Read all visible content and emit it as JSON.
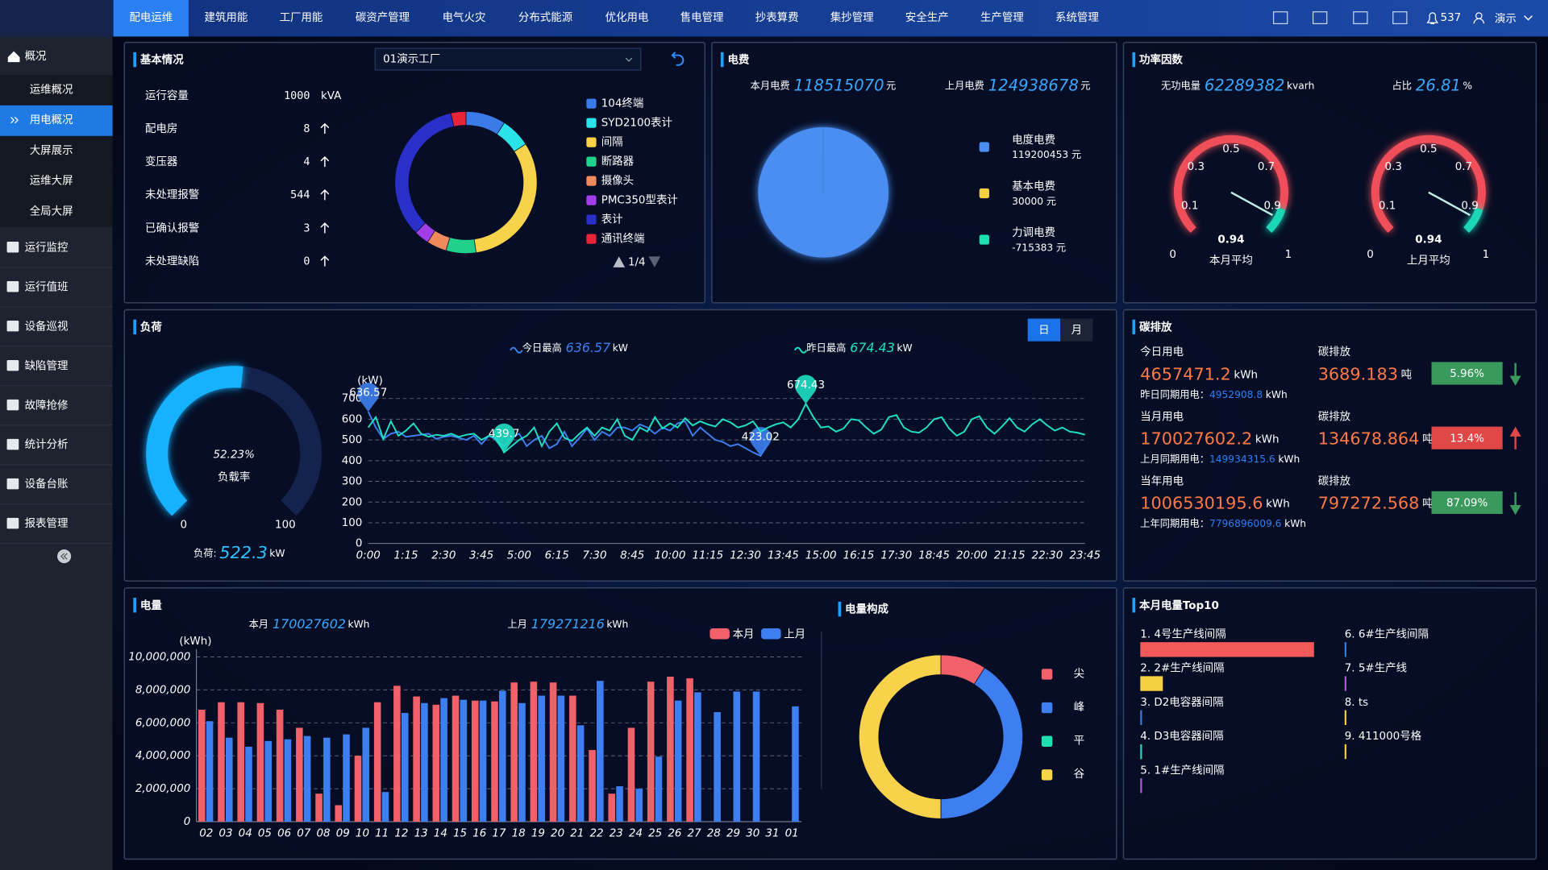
{
  "nav": {
    "items": [
      "配电运维",
      "建筑用能",
      "工厂用能",
      "碳资产管理",
      "电气火灾",
      "分布式能源",
      "优化用电",
      "售电管理",
      "抄表算费",
      "集抄管理",
      "安全生产",
      "生产管理",
      "系统管理"
    ],
    "active": 0,
    "alarm_count": 537,
    "user": "演示"
  },
  "sidebar": {
    "home": "概况",
    "submenu": [
      "运维概况",
      "用电概况",
      "大屏展示",
      "运维大屏",
      "全局大屏"
    ],
    "active_submenu": 1,
    "menu": [
      "运行监控",
      "运行值班",
      "设备巡视",
      "缺陷管理",
      "故障抢修",
      "统计分析",
      "设备台账",
      "报表管理"
    ]
  },
  "basic": {
    "title": "基本情况",
    "site": "01演示工厂",
    "stats": [
      {
        "label": "运行容量",
        "value": 1000,
        "unit": "kVA",
        "color": "#1aa7ff"
      },
      {
        "label": "配电房",
        "value": 8,
        "color": "#1aa7ff"
      },
      {
        "label": "变压器",
        "value": 4,
        "color": "#1aa7ff"
      },
      {
        "label": "未处理报警",
        "value": 544,
        "color": "#ff3b3b"
      },
      {
        "label": "已确认报警",
        "value": 3,
        "color": "#ff3b3b"
      },
      {
        "label": "未处理缺陷",
        "value": 0,
        "color": "#ff3b3b"
      }
    ],
    "devices": {
      "type": "donut",
      "categories": [
        "104终端",
        "SYD2100表计",
        "间隔",
        "断路器",
        "摄像头",
        "PMC350型表计",
        "表计",
        "通讯终端"
      ],
      "values": [
        8,
        6,
        28,
        6,
        4,
        3,
        30,
        3
      ],
      "colors": [
        "#3b7be8",
        "#29e3e8",
        "#f7d24a",
        "#1fd18a",
        "#f08a5d",
        "#a23ee8",
        "#2a2fc9",
        "#e8243a"
      ]
    },
    "page": "1/4"
  },
  "fee": {
    "title": "电费",
    "current_label": "本月电费",
    "current": 118515070,
    "previous_label": "上月电费",
    "previous": 124938678,
    "unit": "元",
    "breakdown": {
      "type": "pie",
      "categories": [
        "电度电费",
        "基本电费",
        "力调电费"
      ],
      "values": [
        119200453,
        30000,
        -715383
      ],
      "colors": [
        "#4a8ef0",
        "#f5d142",
        "#1de0b0"
      ]
    }
  },
  "power_factor": {
    "title": "功率因数",
    "reactive_label": "无功电量",
    "reactive": 62289382,
    "reactive_unit": "kvarh",
    "share_label": "占比",
    "share": 26.81,
    "share_unit": "%",
    "gauges": {
      "type": "gauge",
      "min": 0,
      "max": 1,
      "ticks": [
        0.1,
        0.3,
        0.5,
        0.7,
        0.9
      ],
      "bands": [
        {
          "to": 0.9,
          "color": "#f0505a"
        },
        {
          "to": 1,
          "color": "#1ed6b6"
        }
      ],
      "items": [
        {
          "label": "本月平均",
          "value": 0.94
        },
        {
          "label": "上月平均",
          "value": 0.94
        }
      ]
    }
  },
  "load": {
    "title": "负荷",
    "periods": [
      "日",
      "月"
    ],
    "active_period": 0,
    "gauge": {
      "type": "gauge",
      "value": 52.23,
      "unit": "%",
      "label": "负载率",
      "min": 0,
      "max": 100
    },
    "load_label": "负荷:",
    "load": 522.3,
    "load_unit": "kW",
    "trend": {
      "type": "line",
      "unit": "kW",
      "y_label": "(kW)",
      "categories": [
        "0:00",
        null,
        null,
        null,
        null,
        "1:15",
        null,
        null,
        null,
        null,
        "2:30",
        null,
        null,
        null,
        null,
        "3:45",
        null,
        null,
        null,
        null,
        "5:00",
        null,
        null,
        null,
        null,
        "6:15",
        null,
        null,
        null,
        null,
        "7:30",
        null,
        null,
        null,
        null,
        "8:45",
        null,
        null,
        null,
        null,
        "10:00",
        null,
        null,
        null,
        null,
        "11:15",
        null,
        null,
        null,
        null,
        "12:30",
        null,
        null,
        null,
        null,
        "13:45",
        null,
        null,
        null,
        null,
        "15:00",
        null,
        null,
        null,
        null,
        "16:15",
        null,
        null,
        null,
        null,
        "17:30",
        null,
        null,
        null,
        null,
        "18:45",
        null,
        null,
        null,
        null,
        "20:00",
        null,
        null,
        null,
        null,
        "21:15",
        null,
        null,
        null,
        null,
        "22:30",
        null,
        null,
        null,
        null,
        "23:45"
      ],
      "series": [
        {
          "name": "今日最高",
          "color": "#3d7ff0",
          "values": [
            636.57,
            560,
            505,
            530,
            540,
            515,
            520,
            525,
            530,
            505,
            515,
            520,
            510,
            500,
            520,
            480,
            520,
            500,
            470,
            510,
            530,
            470,
            500,
            520,
            460,
            480,
            540,
            470,
            510,
            555,
            500,
            540,
            520,
            560,
            560,
            545,
            575,
            560,
            530,
            560,
            545,
            580,
            590,
            520,
            560,
            530,
            500,
            490,
            470,
            480,
            460,
            440,
            423.02,
            480,
            null,
            null,
            null,
            null,
            null,
            null,
            null,
            null,
            null,
            null,
            null,
            null,
            null,
            null,
            null,
            null,
            null,
            null,
            null,
            null,
            null,
            null,
            null,
            null,
            null,
            null,
            null,
            null,
            null,
            null,
            null,
            null,
            null,
            null,
            null,
            null,
            null,
            null,
            null,
            null,
            null,
            null
          ]
        },
        {
          "name": "昨日最高",
          "color": "#1fe0c4",
          "values": [
            560,
            610,
            505,
            590,
            520,
            545,
            580,
            530,
            515,
            525,
            520,
            530,
            515,
            525,
            530,
            500,
            520,
            510,
            439.7,
            470,
            500,
            520,
            560,
            470,
            540,
            580,
            510,
            495,
            530,
            560,
            520,
            560,
            545,
            600,
            520,
            500,
            560,
            540,
            610,
            555,
            580,
            560,
            605,
            570,
            590,
            575,
            565,
            600,
            585,
            560,
            570,
            590,
            540,
            560,
            575,
            585,
            560,
            600,
            674.43,
            610,
            560,
            565,
            540,
            555,
            600,
            595,
            560,
            530,
            550,
            610,
            620,
            560,
            540,
            535,
            560,
            600,
            610,
            555,
            520,
            540,
            600,
            615,
            560,
            530,
            565,
            605,
            560,
            540,
            575,
            600,
            570,
            545,
            560,
            540,
            535,
            525
          ]
        }
      ],
      "ylim": [
        0,
        700
      ],
      "yticks": [
        0,
        100,
        200,
        300,
        400,
        500,
        600,
        700
      ],
      "grid": true
    }
  },
  "carbon": {
    "title": "碳排放",
    "energy_unit": "kWh",
    "carbon_unit": "吨",
    "carbon_label": "碳排放",
    "rows": [
      {
        "label": "今日用电",
        "energy": 4657471.2,
        "compare_label": "昨日同期用电：",
        "compare": 4952908.8,
        "carbon": 3689.183,
        "change": "5.96%",
        "trend": "down"
      },
      {
        "label": "当月用电",
        "energy": 170027602.2,
        "compare_label": "上月同期用电：",
        "compare": 149934315.6,
        "carbon": 134678.864,
        "change": "13.4%",
        "trend": "up"
      },
      {
        "label": "当年用电",
        "energy": 1006530195.6,
        "compare_label": "上年同期用电：",
        "compare": 7796896009.6,
        "carbon": 797272.568,
        "change": "87.09%",
        "trend": "down"
      }
    ]
  },
  "energy": {
    "title": "电量",
    "current_label": "本月",
    "current": 170027602,
    "previous_label": "上月",
    "previous": 179271216,
    "unit": "kWh",
    "monthly": {
      "type": "bar",
      "y_label": "(kWh)",
      "categories": [
        "02",
        "03",
        "04",
        "05",
        "06",
        "07",
        "08",
        "09",
        "10",
        "11",
        "12",
        "13",
        "14",
        "15",
        "16",
        "17",
        "18",
        "19",
        "20",
        "21",
        "22",
        "23",
        "24",
        "25",
        "26",
        "27",
        "28",
        "29",
        "30",
        "31",
        "01"
      ],
      "series": [
        {
          "name": "本月",
          "color": "#f2606a",
          "values": [
            6800000,
            7250000,
            7250000,
            7200000,
            6800000,
            5700000,
            1700000,
            1000000,
            4000000,
            7250000,
            8250000,
            7600000,
            7100000,
            7650000,
            7350000,
            7300000,
            8450000,
            8500000,
            8450000,
            7650000,
            4350000,
            1700000,
            5700000,
            8500000,
            8800000,
            8700000,
            null,
            null,
            null,
            null,
            null
          ]
        },
        {
          "name": "上月",
          "color": "#3d7ff0",
          "values": [
            6100000,
            5100000,
            4550000,
            4900000,
            5000000,
            5200000,
            5100000,
            5300000,
            5700000,
            1800000,
            6600000,
            7200000,
            7500000,
            7400000,
            7350000,
            7950000,
            7200000,
            7650000,
            7650000,
            5850000,
            8550000,
            2150000,
            2000000,
            3950000,
            7350000,
            7850000,
            6650000,
            7900000,
            7900000,
            null,
            7000000
          ]
        }
      ],
      "ylim": [
        0,
        10000000
      ],
      "yticks": [
        0,
        {
          "value": 2000000,
          "label": "2,000,000"
        },
        {
          "value": 4000000,
          "label": "4,000,000"
        },
        {
          "value": 6000000,
          "label": "6,000,000"
        },
        {
          "value": 8000000,
          "label": "8,000,000"
        },
        {
          "value": 10000000,
          "label": "10,000,000"
        }
      ],
      "grid": true
    }
  },
  "composition": {
    "title": "电量构成",
    "type": "donut",
    "categories": [
      "尖",
      "峰",
      "平",
      "谷"
    ],
    "values": [
      9,
      41,
      0,
      50
    ],
    "colors": [
      "#f2606a",
      "#3d7ff0",
      "#1de0b0",
      "#f7d24a"
    ]
  },
  "top10": {
    "title": "本月电量Top10",
    "type": "bar",
    "categories": [
      "1. 4号生产线间隔",
      "2. 2#生产线间隔",
      "3. D2电容器间隔",
      "4. D3电容器间隔",
      "5. 1#生产线间隔",
      "6. 6#生产线间隔",
      "7. 5#生产线",
      "8. ts",
      "9. 411000号格"
    ],
    "values": [
      100,
      13,
      1,
      1,
      1,
      1,
      1,
      1,
      1
    ],
    "colors": [
      "#f25a5a",
      "#f5d142",
      "#3a7fe0",
      "#1de0c0",
      "#b05ce0",
      "#3a7fe0",
      "#b05ce0",
      "#f5d142",
      "#f5d142"
    ],
    "xlim": [
      0,
      100
    ]
  }
}
